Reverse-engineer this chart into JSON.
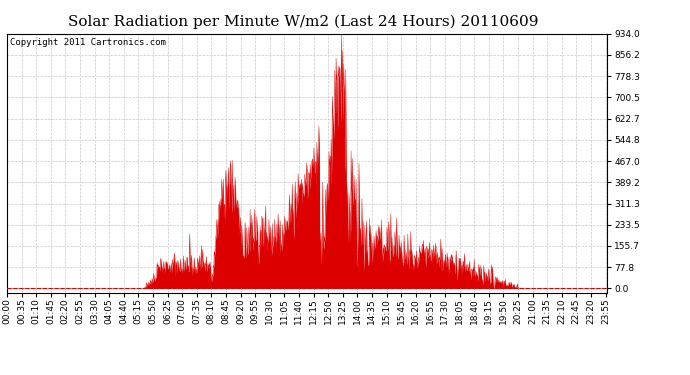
{
  "title": "Solar Radiation per Minute W/m2 (Last 24 Hours) 20110609",
  "copyright_text": "Copyright 2011 Cartronics.com",
  "yticks": [
    0.0,
    77.8,
    155.7,
    233.5,
    311.3,
    389.2,
    467.0,
    544.8,
    622.7,
    700.5,
    778.3,
    856.2,
    934.0
  ],
  "ymax": 934.0,
  "ymin": 0.0,
  "fill_color": "#dd0000",
  "line_color": "#dd0000",
  "background_color": "#ffffff",
  "grid_color": "#bbbbbb",
  "dashed_line_color": "#dd0000",
  "title_fontsize": 11,
  "tick_fontsize": 6.5,
  "copyright_fontsize": 6.5,
  "tick_interval_min": 35
}
